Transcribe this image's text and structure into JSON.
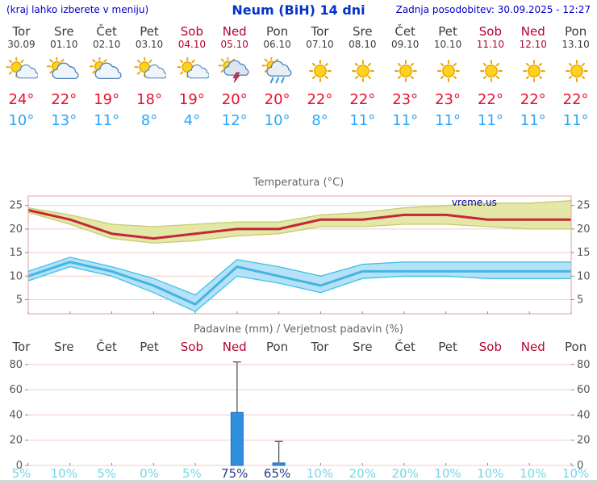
{
  "header": {
    "hint": "(kraj lahko izberete v meniju)",
    "title": "Neum (BiH) 14 dni",
    "updated": "Zadnja posodobitev: 30.09.2025 - 12:27"
  },
  "colors": {
    "weekday": "#3c3c3c",
    "weekend": "#b40431",
    "temp_high": "#e8102e",
    "temp_low": "#2aa7ff",
    "grid": "#f5caca",
    "border": "#dfa0a0",
    "axis_text": "#555555",
    "tick": "#888888",
    "bar_fill": "#2f8fdf",
    "bar_edge": "#1a6ec2",
    "whisker": "#555555",
    "pct_low": "#72d9e8",
    "pct_high": "#2a3c8f",
    "watermark": "#000099"
  },
  "days": [
    {
      "name": "Tor",
      "date": "30.09",
      "weekend": false,
      "icon": "sun-cloud",
      "tmax": "24°",
      "tmin": "10°",
      "precip_prob": "5%",
      "prob_high": false
    },
    {
      "name": "Sre",
      "date": "01.10",
      "weekend": false,
      "icon": "cloud-sun",
      "tmax": "22°",
      "tmin": "13°",
      "precip_prob": "10%",
      "prob_high": false
    },
    {
      "name": "Čet",
      "date": "02.10",
      "weekend": false,
      "icon": "cloud-sun",
      "tmax": "19°",
      "tmin": "11°",
      "precip_prob": "5%",
      "prob_high": false
    },
    {
      "name": "Pet",
      "date": "03.10",
      "weekend": false,
      "icon": "sun-cloud",
      "tmax": "18°",
      "tmin": "8°",
      "precip_prob": "0%",
      "prob_high": false
    },
    {
      "name": "Sob",
      "date": "04.10",
      "weekend": true,
      "icon": "sun-cloud",
      "tmax": "19°",
      "tmin": "4°",
      "precip_prob": "5%",
      "prob_high": false
    },
    {
      "name": "Ned",
      "date": "05.10",
      "weekend": true,
      "icon": "storm",
      "tmax": "20°",
      "tmin": "12°",
      "precip_prob": "75%",
      "prob_high": true
    },
    {
      "name": "Pon",
      "date": "06.10",
      "weekend": false,
      "icon": "rain-sun",
      "tmax": "20°",
      "tmin": "10°",
      "precip_prob": "65%",
      "prob_high": true
    },
    {
      "name": "Tor",
      "date": "07.10",
      "weekend": false,
      "icon": "sun",
      "tmax": "22°",
      "tmin": "8°",
      "precip_prob": "10%",
      "prob_high": false
    },
    {
      "name": "Sre",
      "date": "08.10",
      "weekend": false,
      "icon": "sun",
      "tmax": "22°",
      "tmin": "11°",
      "precip_prob": "20%",
      "prob_high": false
    },
    {
      "name": "Čet",
      "date": "09.10",
      "weekend": false,
      "icon": "sun",
      "tmax": "23°",
      "tmin": "11°",
      "precip_prob": "20%",
      "prob_high": false
    },
    {
      "name": "Pet",
      "date": "10.10",
      "weekend": false,
      "icon": "sun",
      "tmax": "23°",
      "tmin": "11°",
      "precip_prob": "10%",
      "prob_high": false
    },
    {
      "name": "Sob",
      "date": "11.10",
      "weekend": true,
      "icon": "sun",
      "tmax": "22°",
      "tmin": "11°",
      "precip_prob": "10%",
      "prob_high": false
    },
    {
      "name": "Ned",
      "date": "12.10",
      "weekend": true,
      "icon": "sun",
      "tmax": "22°",
      "tmin": "11°",
      "precip_prob": "10%",
      "prob_high": false
    },
    {
      "name": "Pon",
      "date": "13.10",
      "weekend": false,
      "icon": "sun",
      "tmax": "22°",
      "tmin": "11°",
      "precip_prob": "10%",
      "prob_high": false
    }
  ],
  "chart_data": [
    {
      "type": "area",
      "title": "Temperatura (°C)",
      "watermark": "vreme.us",
      "x": [
        "Tor",
        "Sre",
        "Čet",
        "Pet",
        "Sob",
        "Ned",
        "Pon",
        "Tor",
        "Sre",
        "Čet",
        "Pet",
        "Sob",
        "Ned",
        "Pon"
      ],
      "yticks": [
        5,
        10,
        15,
        20,
        25
      ],
      "ylim": [
        2,
        27
      ],
      "grid": true,
      "legend": "none",
      "series": [
        {
          "name": "max-temp",
          "line_color": "#c2283a",
          "band_fill": "#e4e7a6",
          "band_edge": "#c6cc6e",
          "values": [
            24,
            22,
            19,
            18,
            19,
            20,
            20,
            22,
            22,
            23,
            23,
            22,
            22,
            22
          ],
          "band_upper": [
            24.5,
            23,
            21,
            20.5,
            21,
            21.5,
            21.5,
            23,
            23.5,
            24.5,
            25,
            25.5,
            25.5,
            26
          ],
          "band_lower": [
            23.5,
            21,
            18,
            17,
            17.5,
            18.5,
            19,
            20.5,
            20.5,
            21,
            21,
            20.5,
            20,
            20
          ]
        },
        {
          "name": "min-temp",
          "line_color": "#45b4e4",
          "band_fill": "#b5e2f6",
          "band_edge": "#3fc2e9",
          "values": [
            10,
            13,
            11,
            8,
            4,
            12,
            10,
            8,
            11,
            11,
            11,
            11,
            11,
            11
          ],
          "band_upper": [
            11,
            14,
            12,
            9.5,
            6,
            13.5,
            12,
            10,
            12.5,
            13,
            13,
            13,
            13,
            13
          ],
          "band_lower": [
            9,
            12,
            10,
            6.5,
            2.5,
            10,
            8.5,
            6.5,
            9.5,
            10,
            10,
            9.5,
            9.5,
            9.5
          ]
        }
      ]
    },
    {
      "type": "bar",
      "title": "Padavine (mm) / Verjetnost padavin (%)",
      "x": [
        "Tor",
        "Sre",
        "Čet",
        "Pet",
        "Sob",
        "Ned",
        "Pon",
        "Tor",
        "Sre",
        "Čet",
        "Pet",
        "Sob",
        "Ned",
        "Pon"
      ],
      "yticks": [
        0,
        20,
        40,
        60,
        80
      ],
      "ylim": [
        0,
        85
      ],
      "values": [
        0,
        0,
        0,
        0,
        0,
        42,
        2,
        0,
        0,
        0,
        0,
        0,
        0,
        0
      ],
      "whisker_max": [
        0,
        0,
        0,
        0,
        0,
        82,
        19,
        0,
        0,
        0,
        0,
        0,
        0,
        0
      ],
      "probabilities": [
        "5%",
        "10%",
        "5%",
        "0%",
        "5%",
        "75%",
        "65%",
        "10%",
        "20%",
        "20%",
        "10%",
        "10%",
        "10%",
        "10%"
      ]
    }
  ]
}
